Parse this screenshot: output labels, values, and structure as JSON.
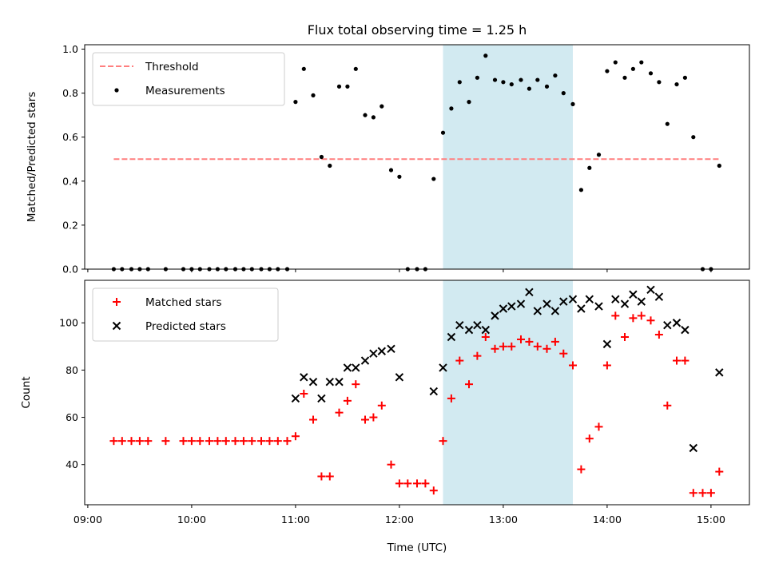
{
  "chart_data": {
    "type": "scatter",
    "title": "Flux total observing time = 1.25 h",
    "xlabel": "Time (UTC)",
    "x_ticks": [
      "09:00",
      "10:00",
      "11:00",
      "12:00",
      "13:00",
      "14:00",
      "15:00"
    ],
    "x_range_hours": [
      8.97,
      15.37
    ],
    "highlight_span_hours": [
      12.42,
      13.67
    ],
    "highlight_color": "#add8e6",
    "panels": [
      {
        "ylabel": "Matched/Predicted stars",
        "ylim": [
          0.0,
          1.02
        ],
        "y_ticks": [
          "0.0",
          "0.2",
          "0.4",
          "0.6",
          "0.8",
          "1.0"
        ],
        "legend_position": "upper left",
        "threshold": {
          "name": "Threshold",
          "value": 0.5,
          "x_range_hours": [
            9.25,
            15.08
          ],
          "color": "#ff7f7f",
          "style": "dashed"
        },
        "series": [
          {
            "name": "Measurements",
            "marker": "dot",
            "color": "#000000",
            "x": [
              9.25,
              9.33,
              9.42,
              9.5,
              9.58,
              9.75,
              9.92,
              10.0,
              10.08,
              10.17,
              10.25,
              10.33,
              10.42,
              10.5,
              10.58,
              10.67,
              10.75,
              10.83,
              10.92,
              11.0,
              11.08,
              11.17,
              11.25,
              11.33,
              11.42,
              11.5,
              11.58,
              11.67,
              11.75,
              11.83,
              11.92,
              12.0,
              12.08,
              12.17,
              12.25,
              12.33,
              12.42,
              12.5,
              12.58,
              12.67,
              12.75,
              12.83,
              12.92,
              13.0,
              13.08,
              13.17,
              13.25,
              13.33,
              13.42,
              13.5,
              13.58,
              13.67,
              13.75,
              13.83,
              13.92,
              14.0,
              14.08,
              14.17,
              14.25,
              14.33,
              14.42,
              14.5,
              14.58,
              14.67,
              14.75,
              14.83,
              14.92,
              15.0,
              15.08
            ],
            "y": [
              0.0,
              0.0,
              0.0,
              0.0,
              0.0,
              0.0,
              0.0,
              0.0,
              0.0,
              0.0,
              0.0,
              0.0,
              0.0,
              0.0,
              0.0,
              0.0,
              0.0,
              0.0,
              0.0,
              0.76,
              0.91,
              0.79,
              0.51,
              0.47,
              0.83,
              0.83,
              0.91,
              0.7,
              0.69,
              0.74,
              0.45,
              0.42,
              0.0,
              0.0,
              0.0,
              0.41,
              0.62,
              0.73,
              0.85,
              0.76,
              0.87,
              0.97,
              0.86,
              0.85,
              0.84,
              0.86,
              0.82,
              0.86,
              0.83,
              0.88,
              0.8,
              0.75,
              0.36,
              0.46,
              0.52,
              0.9,
              0.94,
              0.87,
              0.91,
              0.94,
              0.89,
              0.85,
              0.66,
              0.84,
              0.87,
              0.6,
              0.0,
              0.0,
              0.47
            ]
          }
        ]
      },
      {
        "ylabel": "Count",
        "ylim": [
          23,
          118
        ],
        "y_ticks": [
          "40",
          "60",
          "80",
          "100"
        ],
        "legend_position": "upper left",
        "series": [
          {
            "name": "Matched stars",
            "marker": "plus",
            "color": "#ff0000",
            "x": [
              9.25,
              9.33,
              9.42,
              9.5,
              9.58,
              9.75,
              9.92,
              10.0,
              10.08,
              10.17,
              10.25,
              10.33,
              10.42,
              10.5,
              10.58,
              10.67,
              10.75,
              10.83,
              10.92,
              11.0,
              11.08,
              11.17,
              11.25,
              11.33,
              11.42,
              11.5,
              11.58,
              11.67,
              11.75,
              11.83,
              11.92,
              12.0,
              12.08,
              12.17,
              12.25,
              12.33,
              12.42,
              12.5,
              12.58,
              12.67,
              12.75,
              12.83,
              12.92,
              13.0,
              13.08,
              13.17,
              13.25,
              13.33,
              13.42,
              13.5,
              13.58,
              13.67,
              13.75,
              13.83,
              13.92,
              14.0,
              14.08,
              14.17,
              14.25,
              14.33,
              14.42,
              14.5,
              14.58,
              14.67,
              14.75,
              14.83,
              14.92,
              15.0,
              15.08
            ],
            "y": [
              50,
              50,
              50,
              50,
              50,
              50,
              50,
              50,
              50,
              50,
              50,
              50,
              50,
              50,
              50,
              50,
              50,
              50,
              50,
              52,
              70,
              59,
              35,
              35,
              62,
              67,
              74,
              59,
              60,
              65,
              40,
              32,
              32,
              32,
              32,
              29,
              50,
              68,
              84,
              74,
              86,
              94,
              89,
              90,
              90,
              93,
              92,
              90,
              89,
              92,
              87,
              82,
              38,
              51,
              56,
              82,
              103,
              94,
              102,
              103,
              101,
              95,
              65,
              84,
              84,
              28,
              28,
              28,
              37
            ]
          },
          {
            "name": "Predicted stars",
            "marker": "x",
            "color": "#000000",
            "x": [
              11.0,
              11.08,
              11.17,
              11.25,
              11.33,
              11.42,
              11.5,
              11.58,
              11.67,
              11.75,
              11.83,
              11.92,
              12.0,
              12.33,
              12.42,
              12.5,
              12.58,
              12.67,
              12.75,
              12.83,
              12.92,
              13.0,
              13.08,
              13.17,
              13.25,
              13.33,
              13.42,
              13.5,
              13.58,
              13.67,
              13.75,
              13.83,
              13.92,
              14.0,
              14.08,
              14.17,
              14.25,
              14.33,
              14.42,
              14.5,
              14.58,
              14.67,
              14.75,
              14.83,
              15.08
            ],
            "y": [
              68,
              77,
              75,
              68,
              75,
              75,
              81,
              81,
              84,
              87,
              88,
              89,
              77,
              71,
              81,
              94,
              99,
              97,
              99,
              97,
              103,
              106,
              107,
              108,
              113,
              105,
              108,
              105,
              109,
              110,
              106,
              110,
              107,
              91,
              110,
              108,
              112,
              109,
              114,
              111,
              99,
              100,
              97,
              47,
              79
            ]
          }
        ]
      }
    ]
  }
}
